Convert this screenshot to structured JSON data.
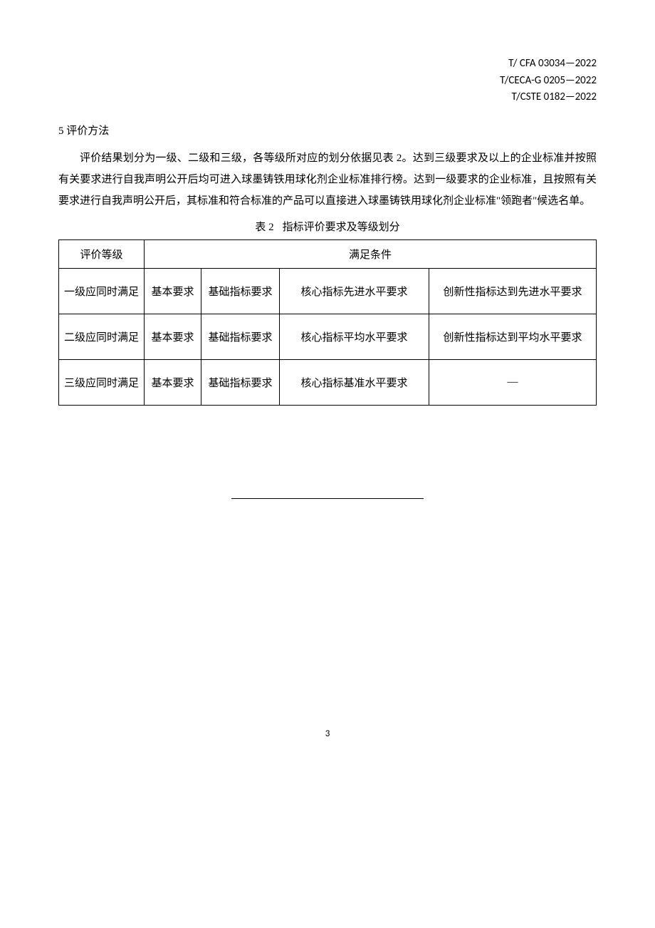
{
  "header": {
    "codes": [
      "T/ CFA 03034—2022",
      "T/CECA-G 0205—2022",
      "T/CSTE 0182—2022"
    ]
  },
  "section": {
    "number": "5",
    "title": "评价方法"
  },
  "body": {
    "paragraph": "评价结果划分为一级、二级和三级，各等级所对应的划分依据见表 2。达到三级要求及以上的企业标准并按照有关要求进行自我声明公开后均可进入球墨铸铁用球化剂企业标准排行榜。达到一级要求的企业标准，且按照有关要求进行自我声明公开后，其标准和符合标准的产品可以直接进入球墨铸铁用球化剂企业标准\"领跑者\"候选名单。"
  },
  "table": {
    "caption_prefix": "表 2",
    "caption": "指标评价要求及等级划分",
    "header_col1": "评价等级",
    "header_col2": "满足条件",
    "rows": [
      {
        "level": "一级应同时满足",
        "basic": "基本要求",
        "foundation": "基础指标要求",
        "core": "核心指标先进水平要求",
        "innovation": "创新性指标达到先进水平要求"
      },
      {
        "level": "二级应同时满足",
        "basic": "基本要求",
        "foundation": "基础指标要求",
        "core": "核心指标平均水平要求",
        "innovation": "创新性指标达到平均水平要求"
      },
      {
        "level": "三级应同时满足",
        "basic": "基本要求",
        "foundation": "基础指标要求",
        "core": "核心指标基准水平要求",
        "innovation": "—"
      }
    ]
  },
  "page_number": "3",
  "styles": {
    "background_color": "#ffffff",
    "text_color": "#000000",
    "border_color": "#000000",
    "body_fontsize": 15,
    "line_height": 2.0
  }
}
